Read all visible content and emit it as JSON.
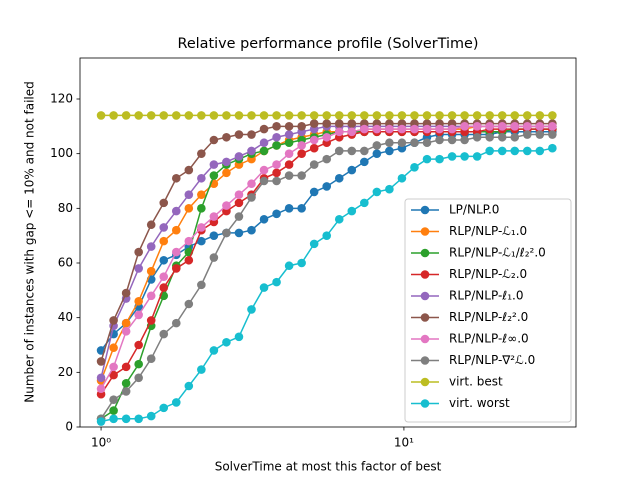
{
  "chart_data": {
    "type": "line",
    "title": "Relative performance profile (SolverTime)",
    "xlabel": "SolverTime at most this factor of best",
    "ylabel": "Number of instances with gap <= 10% and not failed",
    "xscale": "log",
    "xlim": [
      0.852,
      37
    ],
    "ylim": [
      0,
      135
    ],
    "xticks": [
      {
        "value": 1,
        "label": "10⁰"
      },
      {
        "value": 10,
        "label": "10¹"
      }
    ],
    "yticks": [
      0,
      20,
      40,
      60,
      80,
      100,
      120
    ],
    "legend": "lower right",
    "x": [
      1,
      1.1,
      1.21,
      1.331,
      1.4641,
      1.6105,
      1.7716,
      1.9487,
      2.1436,
      2.3579,
      2.5937,
      2.8531,
      3.1384,
      3.4523,
      3.7975,
      4.1772,
      4.595,
      5.0545,
      5.5599,
      6.1159,
      6.7275,
      7.4002,
      8.1403,
      8.9543,
      9.8497,
      10.8347,
      11.9182,
      13.11,
      14.421,
      15.8631,
      17.4494,
      19.1943,
      21.1138,
      23.2252,
      25.5477,
      28.1024,
      30.9127
    ],
    "series": [
      {
        "name": "LP/NLP.0",
        "color": "#1f77b4",
        "values": [
          28,
          34,
          38,
          44,
          54,
          61,
          63,
          66,
          68,
          70,
          71,
          71,
          72,
          76,
          78,
          80,
          80,
          86,
          88,
          91,
          94,
          97,
          100,
          101,
          102,
          104,
          106,
          107,
          107,
          107,
          107,
          107,
          108,
          108,
          108,
          108,
          108
        ]
      },
      {
        "name": "RLP/NLP-ℒ₁.0",
        "color": "#ff7f0e",
        "values": [
          17,
          29,
          38,
          46,
          57,
          68,
          72,
          80,
          85,
          89,
          93,
          96,
          98,
          101,
          103,
          105,
          106,
          107,
          108,
          108,
          108,
          109,
          109,
          109,
          109,
          109,
          109,
          109,
          109,
          109,
          110,
          110,
          110,
          110,
          110,
          110,
          110
        ]
      },
      {
        "name": "RLP/NLP-ℒ₁/ℓ₂².0",
        "color": "#2ca02c",
        "values": [
          3,
          6,
          16,
          23,
          37,
          48,
          59,
          64,
          80,
          92,
          96,
          98,
          100,
          101,
          103,
          104,
          105,
          106,
          107,
          108,
          108,
          108,
          108,
          108,
          108,
          108,
          108,
          108,
          108,
          108,
          108,
          108,
          108,
          109,
          109,
          109,
          109
        ]
      },
      {
        "name": "RLP/NLP-ℒ₂.0",
        "color": "#d62728",
        "values": [
          12,
          19,
          22,
          30,
          39,
          51,
          58,
          61,
          72,
          75,
          79,
          82,
          85,
          91,
          93,
          96,
          100,
          102,
          104,
          106,
          107,
          108,
          108,
          108,
          108,
          108,
          108,
          108,
          108,
          108,
          108,
          109,
          109,
          109,
          109,
          109,
          109
        ]
      },
      {
        "name": "RLP/NLP-ℓ₁.0",
        "color": "#9467bd",
        "values": [
          18,
          37,
          47,
          58,
          66,
          73,
          79,
          85,
          91,
          96,
          97,
          99,
          101,
          104,
          106,
          107,
          108,
          109,
          110,
          110,
          110,
          110,
          110,
          110,
          110,
          110,
          110,
          110,
          110,
          110,
          110,
          110,
          110,
          110,
          110,
          110,
          110
        ]
      },
      {
        "name": "RLP/NLP-ℓ₂².0",
        "color": "#8c564b",
        "values": [
          24,
          39,
          49,
          64,
          74,
          82,
          91,
          94,
          100,
          105,
          106,
          107,
          107,
          109,
          110,
          110,
          110,
          111,
          111,
          111,
          111,
          111,
          111,
          111,
          111,
          111,
          111,
          111,
          111,
          111,
          111,
          111,
          111,
          111,
          111,
          111,
          111
        ]
      },
      {
        "name": "RLP/NLP-ℓ∞.0",
        "color": "#e377c2",
        "values": [
          14,
          22,
          35,
          41,
          48,
          55,
          64,
          68,
          73,
          77,
          81,
          85,
          89,
          94,
          96,
          100,
          103,
          105,
          106,
          108,
          108,
          109,
          109,
          109,
          109,
          109,
          109,
          109,
          109,
          110,
          110,
          110,
          110,
          110,
          110,
          110,
          110
        ]
      },
      {
        "name": "RLP/NLP-∇²ℒ.0",
        "color": "#7f7f7f",
        "values": [
          3,
          10,
          13,
          18,
          25,
          34,
          38,
          45,
          52,
          62,
          71,
          77,
          84,
          90,
          90,
          92,
          92,
          96,
          98,
          101,
          101,
          101,
          103,
          104,
          104,
          104,
          104,
          105,
          105,
          105,
          106,
          106,
          106,
          106,
          107,
          107,
          107
        ]
      },
      {
        "name": "virt. best",
        "color": "#bcbd22",
        "values": [
          114,
          114,
          114,
          114,
          114,
          114,
          114,
          114,
          114,
          114,
          114,
          114,
          114,
          114,
          114,
          114,
          114,
          114,
          114,
          114,
          114,
          114,
          114,
          114,
          114,
          114,
          114,
          114,
          114,
          114,
          114,
          114,
          114,
          114,
          114,
          114,
          114
        ]
      },
      {
        "name": "virt. worst",
        "color": "#17becf",
        "values": [
          2,
          3,
          3,
          3,
          4,
          7,
          9,
          15,
          21,
          28,
          31,
          33,
          43,
          51,
          53,
          59,
          60,
          67,
          70,
          76,
          79,
          82,
          86,
          87,
          91,
          95,
          98,
          98,
          99,
          99,
          99,
          101,
          101,
          101,
          101,
          101,
          102
        ]
      }
    ]
  }
}
